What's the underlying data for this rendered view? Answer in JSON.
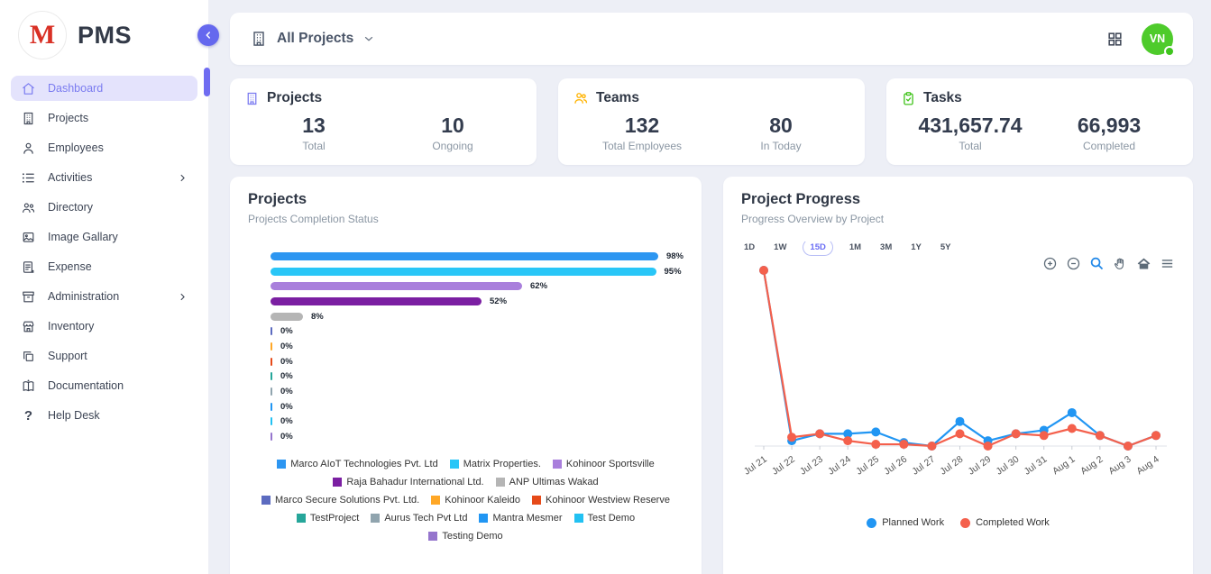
{
  "sidebar": {
    "logo_letter": "M",
    "logo_text": "PMS",
    "items": [
      {
        "label": "Dashboard",
        "active": true
      },
      {
        "label": "Projects"
      },
      {
        "label": "Employees"
      },
      {
        "label": "Activities",
        "has_submenu": true
      },
      {
        "label": "Directory"
      },
      {
        "label": "Image Gallary"
      },
      {
        "label": "Expense"
      },
      {
        "label": "Administration",
        "has_submenu": true
      },
      {
        "label": "Inventory"
      },
      {
        "label": "Support"
      },
      {
        "label": "Documentation"
      },
      {
        "label": "Help Desk"
      }
    ]
  },
  "topbar": {
    "project_selector": "All Projects",
    "avatar_initials": "VN"
  },
  "stats": [
    {
      "title": "Projects",
      "icon": "building-icon",
      "accent": "#7b7bf0",
      "metrics": [
        {
          "value": "13",
          "label": "Total"
        },
        {
          "value": "10",
          "label": "Ongoing"
        }
      ]
    },
    {
      "title": "Teams",
      "icon": "people-icon",
      "accent": "#FFB300",
      "metrics": [
        {
          "value": "132",
          "label": "Total Employees"
        },
        {
          "value": "80",
          "label": "In Today"
        }
      ]
    },
    {
      "title": "Tasks",
      "icon": "clipboard-check-icon",
      "accent": "#44c41f",
      "metrics": [
        {
          "value": "431,657.74",
          "label": "Total"
        },
        {
          "value": "66,993",
          "label": "Completed"
        }
      ]
    }
  ],
  "chart_data": [
    {
      "type": "bar",
      "orientation": "horizontal",
      "title": "Projects",
      "subtitle": "Projects Completion Status",
      "unit": "%",
      "xlim": [
        0,
        100
      ],
      "categories": [
        "Marco AIoT Technologies Pvt. Ltd",
        "Matrix Properties.",
        "Kohinoor Sportsville",
        "Raja Bahadur International Ltd.",
        "ANP Ultimas Wakad",
        "Marco Secure Solutions Pvt. Ltd.",
        "Kohinoor Kaleido",
        "Kohinoor Westview Reserve",
        "TestProject",
        "Aurus Tech Pvt Ltd",
        "Mantra Mesmer",
        "Test Demo",
        "Testing Demo"
      ],
      "values": [
        98,
        95,
        62,
        52,
        8,
        0,
        0,
        0,
        0,
        0,
        0,
        0,
        0
      ],
      "colors": [
        "#2D96F1",
        "#29C6F7",
        "#A97FDC",
        "#7B1FA2",
        "#B5B5B5",
        "#5C6BC0",
        "#FFA726",
        "#E64A19",
        "#26A69A",
        "#90A4AE",
        "#2196F3",
        "#22C1F2",
        "#9575CD"
      ],
      "legend_position": "bottom"
    },
    {
      "type": "line",
      "title": "Project Progress",
      "subtitle": "Progress Overview by Project",
      "range_buttons": [
        "1D",
        "1W",
        "15D",
        "1M",
        "3M",
        "1Y",
        "5Y"
      ],
      "selected_range": "15D",
      "toolbar_icons": [
        "zoom-in-icon",
        "zoom-out-icon",
        "box-zoom-icon",
        "pan-icon",
        "home-icon",
        "menu-icon"
      ],
      "x": [
        "Jul 21",
        "Jul 22",
        "Jul 23",
        "Jul 24",
        "Jul 25",
        "Jul 26",
        "Jul 27",
        "Jul 28",
        "Jul 29",
        "Jul 30",
        "Jul 31",
        "Aug 1",
        "Aug 2",
        "Aug 3",
        "Aug 4"
      ],
      "y_axis": "hidden (relative progress)",
      "ylim": [
        0,
        100
      ],
      "series": [
        {
          "name": "Planned Work",
          "color": "#2196F3",
          "values": [
            100,
            3,
            7,
            7,
            8,
            2,
            0,
            14,
            3,
            7,
            9,
            19,
            6,
            0,
            6
          ]
        },
        {
          "name": "Completed Work",
          "color": "#F4604C",
          "values": [
            100,
            5,
            7,
            3,
            1,
            1,
            0,
            7,
            0,
            7,
            6,
            10,
            6,
            0,
            6
          ]
        }
      ],
      "legend_position": "bottom"
    }
  ]
}
